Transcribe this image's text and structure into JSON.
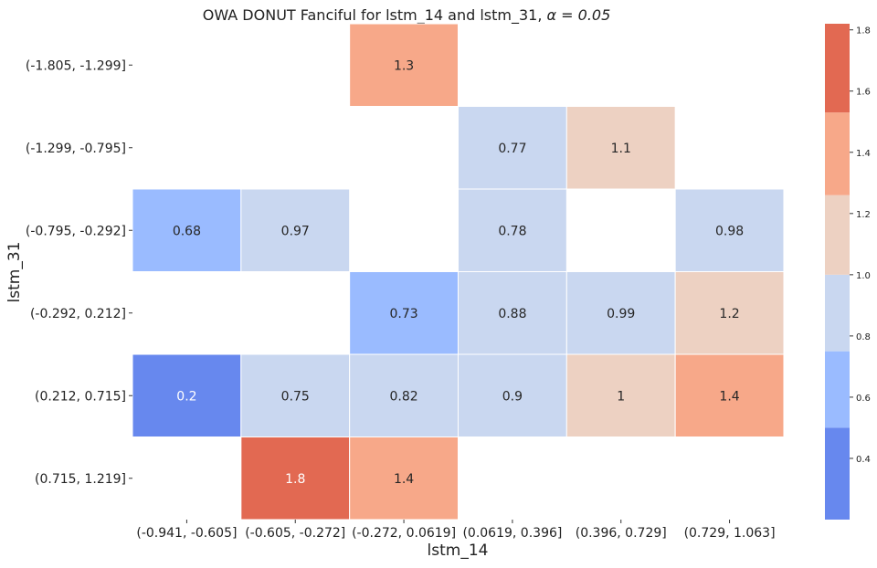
{
  "chart_data": {
    "type": "heatmap",
    "title": "OWA DONUT Fanciful for lstm_14 and lstm_31, ",
    "title_alpha": "α = 0.05",
    "xlabel": "lstm_14",
    "ylabel": "lstm_31",
    "x_categories": [
      "(-0.941, -0.605]",
      "(-0.605, -0.272]",
      "(-0.272, 0.0619]",
      "(0.0619, 0.396]",
      "(0.396, 0.729]",
      "(0.729, 1.063]"
    ],
    "y_categories": [
      "(-1.805, -1.299]",
      "(-1.299, -0.795]",
      "(-0.795, -0.292]",
      "(-0.292, 0.212]",
      "(0.212, 0.715]",
      "(0.715, 1.219]"
    ],
    "values": [
      [
        null,
        null,
        1.3,
        null,
        null,
        null
      ],
      [
        null,
        null,
        null,
        0.77,
        1.1,
        null
      ],
      [
        0.68,
        0.97,
        null,
        0.78,
        null,
        0.98
      ],
      [
        null,
        null,
        0.73,
        0.88,
        0.99,
        1.2
      ],
      [
        0.2,
        0.75,
        0.82,
        0.9,
        1,
        1.4
      ],
      [
        null,
        1.8,
        1.4,
        null,
        null,
        null
      ]
    ],
    "labels": [
      [
        "",
        "",
        "1.3",
        "",
        "",
        ""
      ],
      [
        "",
        "",
        "",
        "0.77",
        "1.1",
        ""
      ],
      [
        "0.68",
        "0.97",
        "",
        "0.78",
        "",
        "0.98"
      ],
      [
        "",
        "",
        "0.73",
        "0.88",
        "0.99",
        "1.2"
      ],
      [
        "0.2",
        "0.75",
        "0.82",
        "0.9",
        "1",
        "1.4"
      ],
      [
        "",
        "1.8",
        "1.4",
        "",
        "",
        ""
      ]
    ],
    "colorbar": {
      "bins": [
        {
          "from": 0.2,
          "to": 0.5,
          "color": "#6788ee"
        },
        {
          "from": 0.5,
          "to": 0.75,
          "color": "#9abbff"
        },
        {
          "from": 0.75,
          "to": 1.0,
          "color": "#c9d7f0"
        },
        {
          "from": 1.0,
          "to": 1.26,
          "color": "#edd1c2"
        },
        {
          "from": 1.26,
          "to": 1.53,
          "color": "#f7a889"
        },
        {
          "from": 1.53,
          "to": 1.82,
          "color": "#e26952"
        }
      ],
      "range": [
        0.2,
        1.82
      ],
      "ticks": [
        0.4,
        0.6,
        0.8,
        1.0,
        1.2,
        1.4,
        1.6,
        1.8
      ],
      "tick_labels": [
        "0.4",
        "0.6",
        "0.8",
        "1.0",
        "1.2",
        "1.4",
        "1.6",
        "1.8"
      ]
    },
    "cell_text_colors": {
      "dark": "#262626",
      "light": "#ffffff"
    },
    "grid": false
  }
}
